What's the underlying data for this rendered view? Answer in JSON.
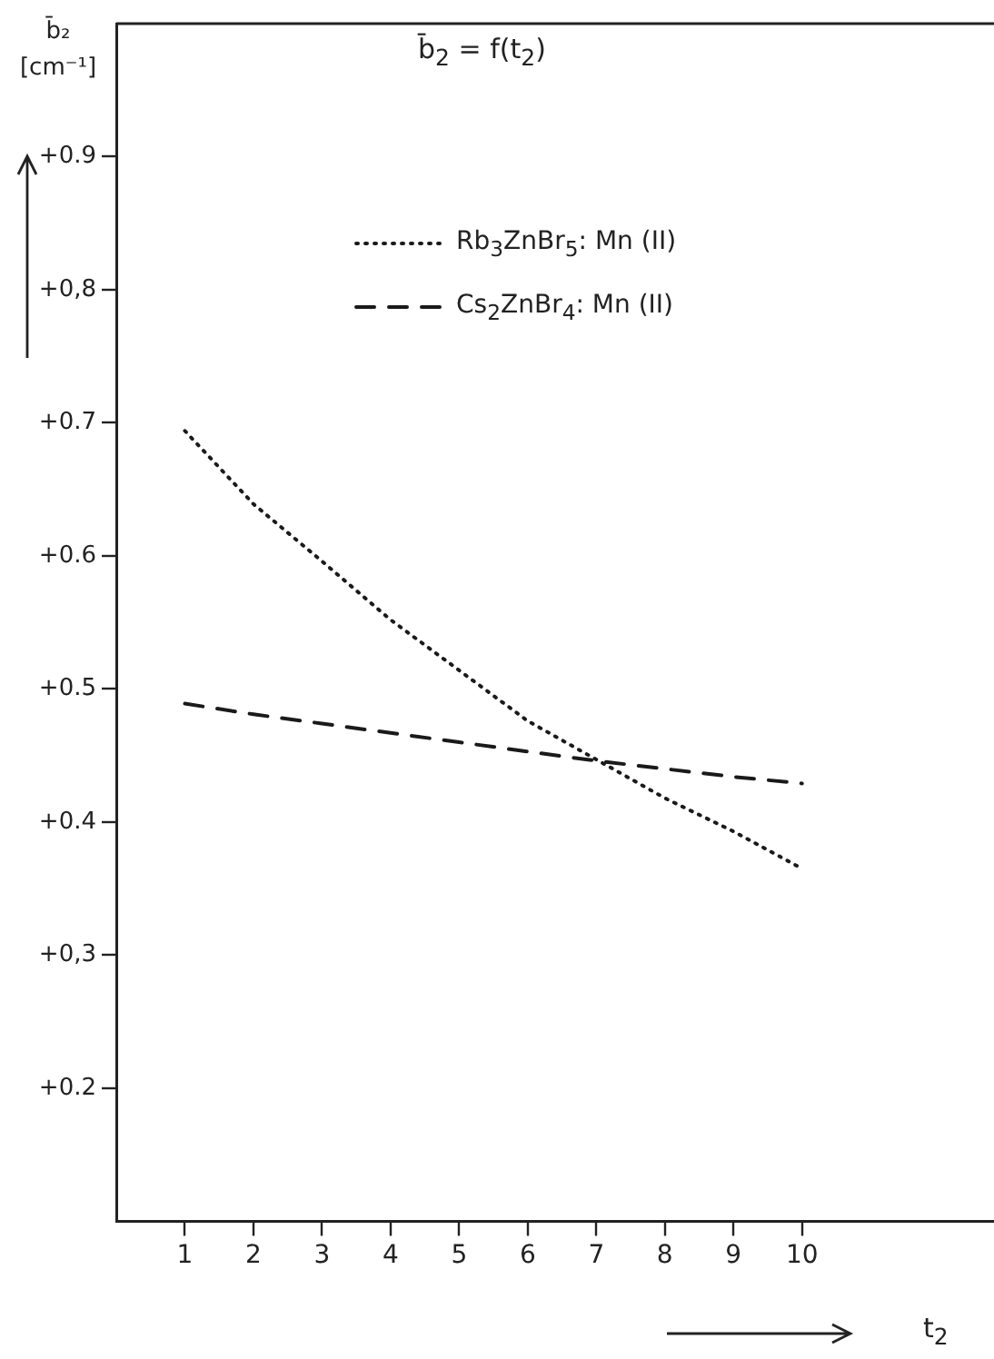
{
  "chart_data": {
    "type": "line",
    "title": "b̄$_{2}$ = f(t$_{2}$)",
    "xlabel": "t$_{2}$",
    "ylabel": "b̄₂ [cm⁻¹]",
    "x": [
      1,
      2,
      3,
      4,
      5,
      6,
      7,
      8,
      9,
      10
    ],
    "series": [
      {
        "name": "Rb$_{3}$ZnBr$_{5}$: Mn (II)",
        "color": "#1a1a1a",
        "line_style": "dotted",
        "values": [
          0.694,
          0.639,
          0.596,
          0.552,
          0.514,
          0.476,
          0.447,
          0.418,
          0.393,
          0.365
        ]
      },
      {
        "name": "Cs$_{2}$ZnBr$_{4}$: Mn (II)",
        "color": "#1a1a1a",
        "line_style": "dashed",
        "values": [
          0.489,
          0.481,
          0.474,
          0.467,
          0.46,
          0.453,
          0.446,
          0.44,
          0.434,
          0.429
        ]
      }
    ],
    "xlim": [
      0,
      12.8
    ],
    "xticks": [
      1,
      2,
      3,
      4,
      5,
      6,
      7,
      8,
      9,
      10
    ],
    "ylim": [
      0.1,
      1.0
    ],
    "yticks": [
      {
        "value": 0.2,
        "label": "+0.2"
      },
      {
        "value": 0.3,
        "label": "+0,3"
      },
      {
        "value": 0.4,
        "label": "+0.4"
      },
      {
        "value": 0.5,
        "label": "+0.5"
      },
      {
        "value": 0.6,
        "label": "+0.6"
      },
      {
        "value": 0.7,
        "label": "+0.7"
      },
      {
        "value": 0.8,
        "label": "+0,8"
      },
      {
        "value": 0.9,
        "label": "+0.9"
      }
    ],
    "grid": false,
    "legend": "top",
    "marker": "none"
  }
}
